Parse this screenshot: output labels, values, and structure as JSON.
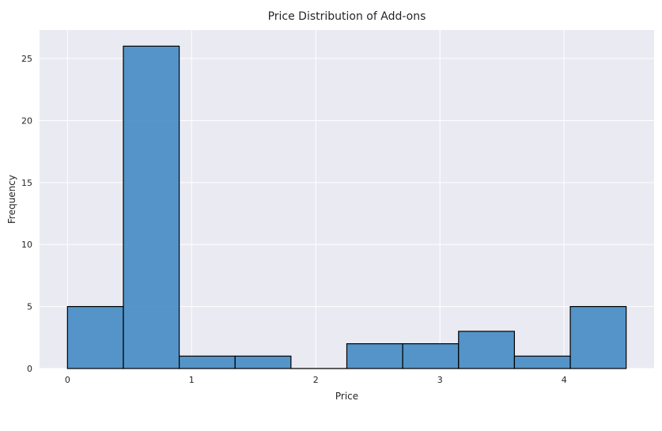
{
  "chart_data": {
    "type": "bar",
    "title": "Price Distribution of Add-ons",
    "xlabel": "Price",
    "ylabel": "Frequency",
    "bins": [
      {
        "x0": 0.0,
        "x1": 0.45,
        "count": 5
      },
      {
        "x0": 0.45,
        "x1": 0.9,
        "count": 26
      },
      {
        "x0": 0.9,
        "x1": 1.35,
        "count": 1
      },
      {
        "x0": 1.35,
        "x1": 1.8,
        "count": 1
      },
      {
        "x0": 1.8,
        "x1": 2.25,
        "count": 0
      },
      {
        "x0": 2.25,
        "x1": 2.7,
        "count": 2
      },
      {
        "x0": 2.7,
        "x1": 3.15,
        "count": 2
      },
      {
        "x0": 3.15,
        "x1": 3.6,
        "count": 3
      },
      {
        "x0": 3.6,
        "x1": 4.05,
        "count": 1
      },
      {
        "x0": 4.05,
        "x1": 4.5,
        "count": 5
      }
    ],
    "xlim": [
      -0.225,
      4.725
    ],
    "ylim": [
      0,
      27.3
    ],
    "xticks": [
      0,
      1,
      2,
      3,
      4
    ],
    "yticks": [
      0,
      5,
      10,
      15,
      20,
      25
    ],
    "grid": true,
    "legend": "none",
    "colors": {
      "bar_fill": "#3f87c2",
      "bar_edge": "#000000",
      "plot_background": "#eaeaf2",
      "grid": "#ffffff"
    }
  }
}
